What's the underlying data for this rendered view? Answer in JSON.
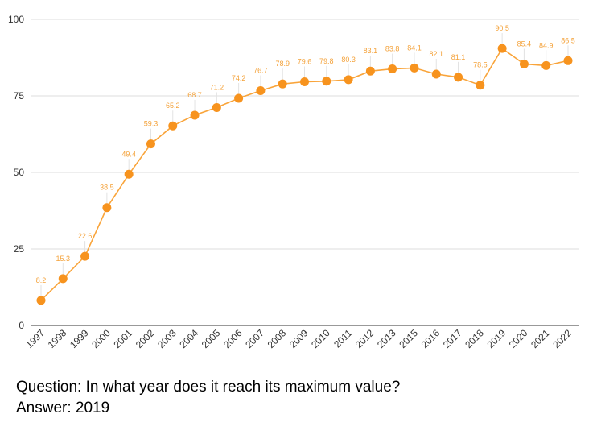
{
  "chart_data": {
    "type": "line",
    "x": [
      "1997",
      "1998",
      "1999",
      "2000",
      "2001",
      "2002",
      "2003",
      "2004",
      "2005",
      "2006",
      "2007",
      "2008",
      "2009",
      "2010",
      "2011",
      "2012",
      "2013",
      "2015",
      "2016",
      "2017",
      "2018",
      "2019",
      "2020",
      "2021",
      "2022"
    ],
    "series": [
      {
        "values": [
          8.2,
          15.3,
          22.6,
          38.5,
          49.4,
          59.3,
          65.2,
          68.7,
          71.2,
          74.2,
          76.7,
          78.9,
          79.6,
          79.8,
          80.3,
          83.1,
          83.8,
          84.1,
          82.1,
          81.1,
          78.5,
          90.5,
          85.4,
          84.9,
          86.5
        ]
      }
    ],
    "ylim": [
      0,
      100
    ],
    "yticks": [
      0,
      25,
      50,
      75,
      100
    ],
    "grid": true,
    "colors": {
      "line": "#f9a43a",
      "marker": "#f7931e",
      "label": "#f4a23a",
      "grid": "#dddddd"
    }
  },
  "question": "Question: In what year does it reach its maximum value?",
  "answer": "Answer: 2019"
}
